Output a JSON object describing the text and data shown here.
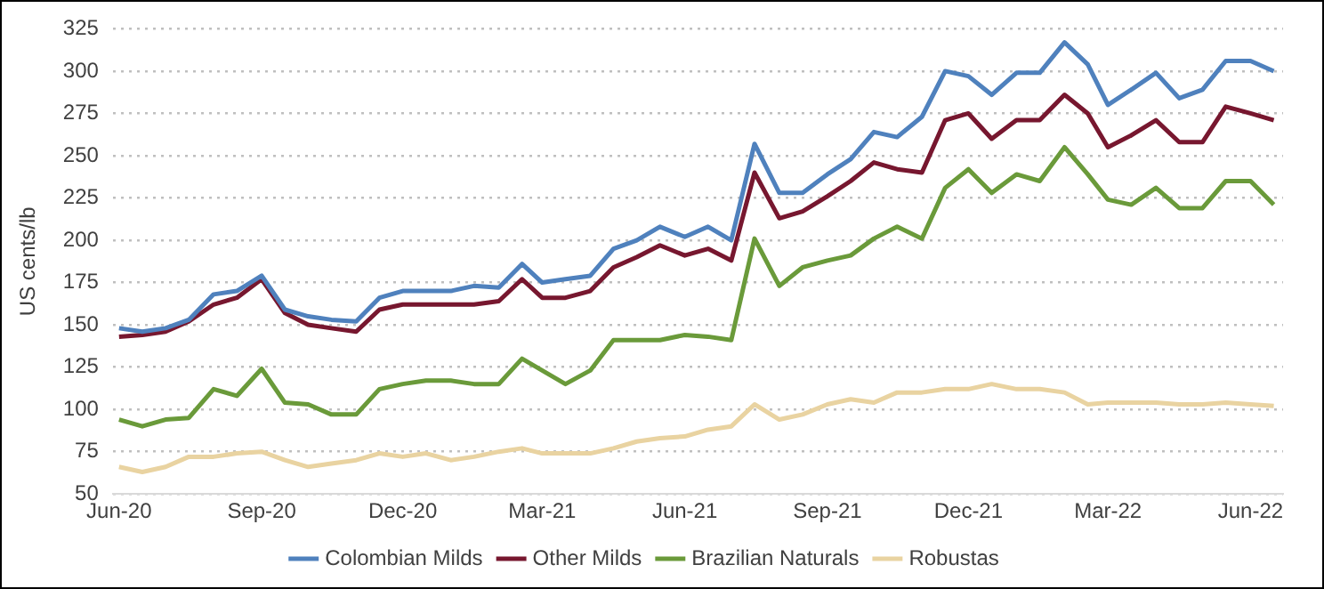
{
  "chart_data": {
    "type": "line",
    "ylabel": "US cents/lb",
    "x": [
      "2020-06-01",
      "2020-06-16",
      "2020-07-01",
      "2020-07-16",
      "2020-08-01",
      "2020-08-16",
      "2020-09-01",
      "2020-09-16",
      "2020-10-01",
      "2020-10-16",
      "2020-11-01",
      "2020-11-16",
      "2020-12-01",
      "2020-12-16",
      "2021-01-01",
      "2021-01-16",
      "2021-02-01",
      "2021-02-16",
      "2021-03-01",
      "2021-03-16",
      "2021-04-01",
      "2021-04-16",
      "2021-05-01",
      "2021-05-16",
      "2021-06-01",
      "2021-06-16",
      "2021-07-01",
      "2021-07-16",
      "2021-08-01",
      "2021-08-16",
      "2021-09-01",
      "2021-09-16",
      "2021-10-01",
      "2021-10-16",
      "2021-11-01",
      "2021-11-16",
      "2021-12-01",
      "2021-12-16",
      "2022-01-01",
      "2022-01-16",
      "2022-02-01",
      "2022-02-16",
      "2022-03-01",
      "2022-03-16",
      "2022-04-01",
      "2022-04-16",
      "2022-05-01",
      "2022-05-16",
      "2022-06-01",
      "2022-06-16"
    ],
    "series": [
      {
        "name": "Colombian Milds",
        "color": "#4f81bd",
        "values": [
          148,
          146,
          148,
          153,
          168,
          170,
          179,
          159,
          155,
          153,
          152,
          166,
          170,
          170,
          170,
          173,
          172,
          186,
          175,
          177,
          179,
          195,
          200,
          208,
          202,
          208,
          200,
          257,
          228,
          228,
          239,
          248,
          264,
          261,
          273,
          300,
          297,
          286,
          299,
          299,
          317,
          304,
          280,
          289,
          299,
          284,
          289,
          306,
          306,
          300
        ]
      },
      {
        "name": "Other Milds",
        "color": "#77172f",
        "values": [
          143,
          144,
          146,
          152,
          162,
          166,
          177,
          157,
          150,
          148,
          146,
          159,
          162,
          162,
          162,
          162,
          164,
          177,
          166,
          166,
          170,
          184,
          190,
          197,
          191,
          195,
          188,
          240,
          213,
          217,
          226,
          235,
          246,
          242,
          240,
          271,
          275,
          260,
          271,
          271,
          286,
          275,
          255,
          262,
          271,
          258,
          258,
          279,
          275,
          271
        ]
      },
      {
        "name": "Brazilian Naturals",
        "color": "#6a9a3a",
        "values": [
          94,
          90,
          94,
          95,
          112,
          108,
          124,
          104,
          103,
          97,
          97,
          112,
          115,
          117,
          117,
          115,
          115,
          130,
          123,
          115,
          123,
          141,
          141,
          141,
          144,
          143,
          141,
          201,
          173,
          184,
          188,
          191,
          201,
          208,
          201,
          231,
          242,
          228,
          239,
          235,
          255,
          239,
          224,
          221,
          231,
          219,
          219,
          235,
          235,
          221
        ]
      },
      {
        "name": "Robustas",
        "color": "#e9d3a1",
        "values": [
          66,
          63,
          66,
          72,
          72,
          74,
          75,
          70,
          66,
          68,
          70,
          74,
          72,
          74,
          70,
          72,
          75,
          77,
          74,
          74,
          74,
          77,
          81,
          83,
          84,
          88,
          90,
          103,
          94,
          97,
          103,
          106,
          104,
          110,
          110,
          112,
          112,
          115,
          112,
          112,
          110,
          103,
          104,
          104,
          104,
          103,
          103,
          104,
          103,
          102
        ]
      }
    ],
    "xlim": [
      "2020-05-28",
      "2022-06-22"
    ],
    "xticks": [
      {
        "value": "2020-06-01",
        "label": "Jun-20"
      },
      {
        "value": "2020-09-01",
        "label": "Sep-20"
      },
      {
        "value": "2020-12-01",
        "label": "Dec-20"
      },
      {
        "value": "2021-03-01",
        "label": "Mar-21"
      },
      {
        "value": "2021-06-01",
        "label": "Jun-21"
      },
      {
        "value": "2021-09-01",
        "label": "Sep-21"
      },
      {
        "value": "2021-12-01",
        "label": "Dec-21"
      },
      {
        "value": "2022-03-01",
        "label": "Mar-22"
      },
      {
        "value": "2022-06-01",
        "label": "Jun-22"
      }
    ],
    "ylim": [
      50,
      325
    ],
    "yticks": [
      50,
      75,
      100,
      125,
      150,
      175,
      200,
      225,
      250,
      275,
      300,
      325
    ],
    "grid": "y",
    "legend": "bottom",
    "marker": "none",
    "line_style": "solid"
  }
}
